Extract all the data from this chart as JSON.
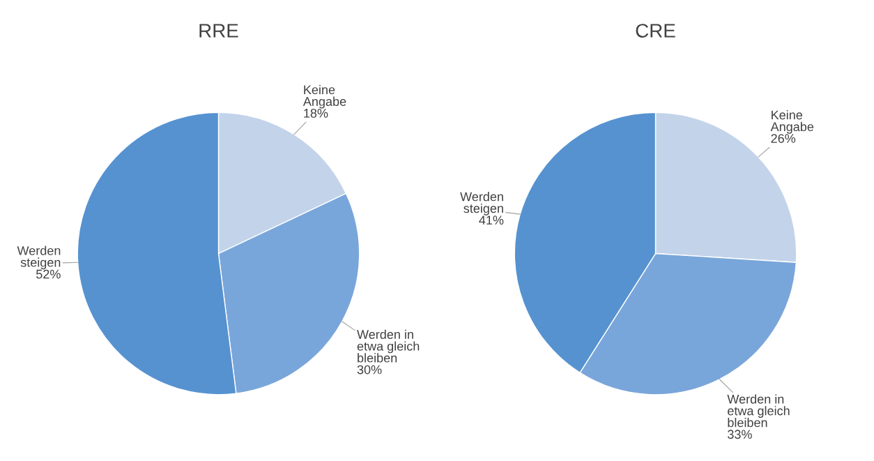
{
  "chart_data": [
    {
      "type": "pie",
      "title": "RRE",
      "categories": [
        "Keine\nAngabe",
        "Werden in\netwa gleich\nbleiben",
        "Werden\nsteigen"
      ],
      "values": [
        18,
        30,
        52
      ],
      "value_labels": [
        "18%",
        "30%",
        "52%"
      ],
      "colors": [
        "#c3d3ea",
        "#79a6da",
        "#5692d0"
      ]
    },
    {
      "type": "pie",
      "title": "CRE",
      "categories": [
        "Keine\nAngabe",
        "Werden in\netwa gleich\nbleiben",
        "Werden\nsteigen"
      ],
      "values": [
        26,
        33,
        41
      ],
      "value_labels": [
        "26%",
        "33%",
        "41%"
      ],
      "colors": [
        "#c3d3ea",
        "#79a6da",
        "#5692d0"
      ]
    }
  ]
}
